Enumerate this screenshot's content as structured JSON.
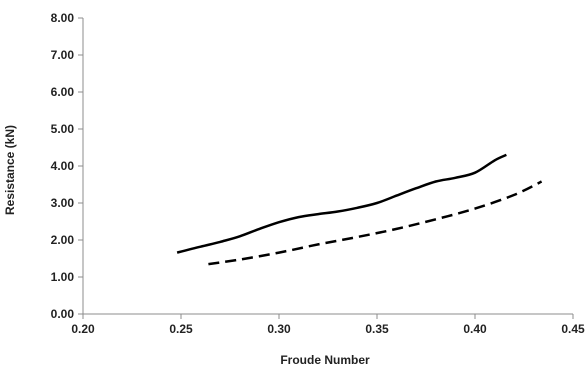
{
  "chart_data": {
    "type": "line",
    "title": "",
    "xlabel": "Froude Number",
    "ylabel": "Resistance (kN)",
    "xlim": [
      0.2,
      0.45
    ],
    "ylim": [
      0.0,
      8.0
    ],
    "x_ticks": [
      "0.20",
      "0.25",
      "0.30",
      "0.35",
      "0.40",
      "0.45"
    ],
    "y_ticks": [
      "0.00",
      "1.00",
      "2.00",
      "3.00",
      "4.00",
      "5.00",
      "6.00",
      "7.00",
      "8.00"
    ],
    "grid": false,
    "legend": "none",
    "series": [
      {
        "style": "solid",
        "color": "#000000",
        "x": [
          0.248,
          0.26,
          0.27,
          0.28,
          0.29,
          0.3,
          0.31,
          0.32,
          0.33,
          0.34,
          0.35,
          0.36,
          0.37,
          0.38,
          0.39,
          0.4,
          0.41,
          0.416
        ],
        "y": [
          1.66,
          1.82,
          1.95,
          2.1,
          2.3,
          2.48,
          2.62,
          2.7,
          2.77,
          2.87,
          3.0,
          3.2,
          3.4,
          3.58,
          3.68,
          3.82,
          4.15,
          4.3
        ]
      },
      {
        "style": "dashed",
        "color": "#000000",
        "x": [
          0.264,
          0.28,
          0.3,
          0.32,
          0.34,
          0.36,
          0.38,
          0.4,
          0.42,
          0.434
        ],
        "y": [
          1.35,
          1.47,
          1.66,
          1.88,
          2.08,
          2.3,
          2.56,
          2.85,
          3.22,
          3.58
        ]
      }
    ]
  }
}
